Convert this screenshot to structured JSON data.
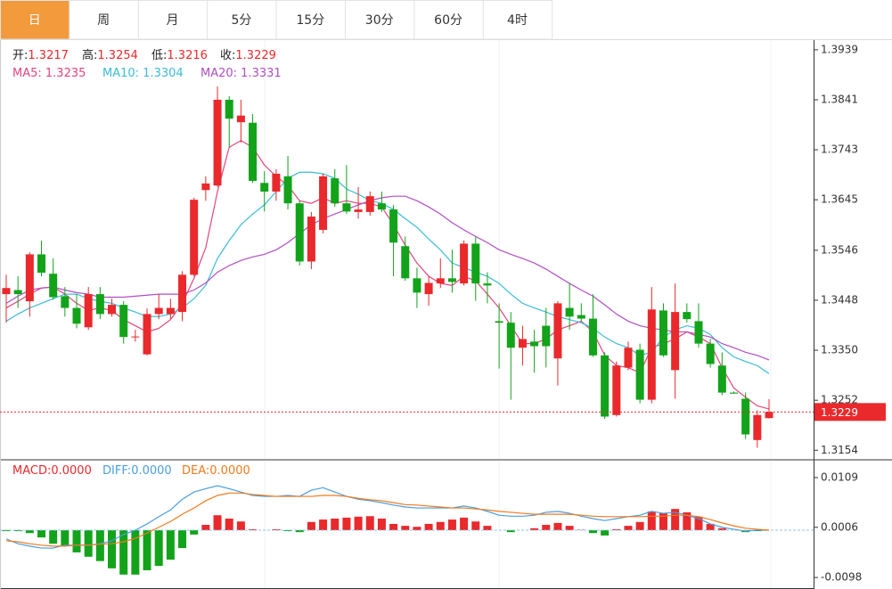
{
  "tabs": [
    "日",
    "周",
    "月",
    "5分",
    "15分",
    "30分",
    "60分",
    "4时"
  ],
  "active_tab": "日",
  "chart_data": [
    {
      "type": "candlestick",
      "ohlc_labels": [
        "开:",
        "高:",
        "低:",
        "收:"
      ],
      "separator": ": ",
      "up_color": "#e9292c",
      "down_color": "#12a31a",
      "current_line": true,
      "ylim": [
        1.3137,
        1.3958
      ],
      "yticks": [
        1.3939,
        1.3841,
        1.3743,
        1.3645,
        1.3546,
        1.3448,
        {
          "value": 1.335,
          "label": "1.3350"
        },
        1.3252,
        1.3154
      ],
      "open": [
        1.346,
        1.3468,
        1.3446,
        1.3538,
        1.35,
        1.3456,
        1.3433,
        1.3395,
        1.346,
        1.3421,
        1.3439,
        1.3376,
        1.3342,
        1.3421,
        1.3421,
        1.3425,
        1.3498,
        1.3664,
        1.3673,
        1.3841,
        1.3797,
        1.3796,
        1.3678,
        1.3661,
        1.3691,
        1.3638,
        1.3524,
        1.3586,
        1.3687,
        1.3638,
        1.3621,
        1.3621,
        1.3638,
        1.3626,
        1.3554,
        1.3491,
        1.346,
        1.3481,
        1.3491,
        1.3481,
        1.3559,
        1.3481,
        1.3407,
        1.3404,
        1.3355,
        1.3367,
        1.3398,
        1.3334,
        1.3433,
        1.3419,
        1.3412,
        1.334,
        1.3223,
        1.3316,
        1.3351,
        1.3253,
        1.3428,
        1.3311,
        1.3425,
        1.3407,
        1.3363,
        1.332,
        1.3267,
        1.3255,
        1.3174,
        1.3217
      ],
      "high": [
        1.3498,
        1.3495,
        1.3542,
        1.3565,
        1.353,
        1.3474,
        1.346,
        1.3474,
        1.3474,
        1.3451,
        1.3446,
        1.339,
        1.3432,
        1.346,
        1.3451,
        1.3505,
        1.3649,
        1.3691,
        1.3867,
        1.3848,
        1.3841,
        1.3813,
        1.3701,
        1.3705,
        1.3731,
        1.3643,
        1.3621,
        1.3696,
        1.3705,
        1.3713,
        1.367,
        1.3661,
        1.3661,
        1.3635,
        1.3573,
        1.3512,
        1.3495,
        1.353,
        1.3547,
        1.3565,
        1.3573,
        1.3503,
        1.3442,
        1.3425,
        1.3398,
        1.339,
        1.3433,
        1.3446,
        1.3482,
        1.3442,
        1.346,
        1.3346,
        1.3328,
        1.3367,
        1.3363,
        1.3474,
        1.3442,
        1.3481,
        1.3442,
        1.3442,
        1.3372,
        1.3346,
        1.3269,
        1.3267,
        1.3232,
        1.3254
      ],
      "low": [
        1.3404,
        1.3433,
        1.3416,
        1.3495,
        1.3449,
        1.3416,
        1.3393,
        1.339,
        1.3411,
        1.3416,
        1.3363,
        1.3367,
        1.334,
        1.3411,
        1.3411,
        1.3407,
        1.3495,
        1.3643,
        1.367,
        1.3748,
        1.3757,
        1.3678,
        1.3622,
        1.3643,
        1.3626,
        1.3516,
        1.3509,
        1.3579,
        1.3631,
        1.3617,
        1.3608,
        1.3614,
        1.3621,
        1.3495,
        1.3486,
        1.3433,
        1.3437,
        1.3472,
        1.3463,
        1.3477,
        1.3447,
        1.3442,
        1.3314,
        1.3253,
        1.332,
        1.3306,
        1.3316,
        1.3281,
        1.339,
        1.3407,
        1.3337,
        1.3215,
        1.322,
        1.3311,
        1.3246,
        1.3246,
        1.3337,
        1.3255,
        1.3404,
        1.3355,
        1.3316,
        1.3262,
        1.3265,
        1.3176,
        1.3159,
        1.3216
      ],
      "close": [
        1.3472,
        1.346,
        1.3538,
        1.3502,
        1.3454,
        1.3433,
        1.3402,
        1.346,
        1.3421,
        1.3439,
        1.3376,
        1.3377,
        1.3421,
        1.3433,
        1.3433,
        1.3498,
        1.3645,
        1.3677,
        1.3841,
        1.3804,
        1.381,
        1.3682,
        1.3661,
        1.3696,
        1.3638,
        1.3524,
        1.3612,
        1.3691,
        1.3638,
        1.3622,
        1.3626,
        1.3652,
        1.3626,
        1.3561,
        1.3491,
        1.3463,
        1.3482,
        1.3491,
        1.3484,
        1.3559,
        1.3481,
        1.3477,
        1.3404,
        1.3355,
        1.3372,
        1.3358,
        1.3358,
        1.3442,
        1.3416,
        1.3412,
        1.334,
        1.322,
        1.332,
        1.3355,
        1.3253,
        1.343,
        1.334,
        1.3425,
        1.3411,
        1.3363,
        1.3323,
        1.3267,
        1.3265,
        1.3185,
        1.3223,
        1.3229
      ],
      "series": [
        {
          "name": "MA5",
          "color": "#e2457f",
          "values": [
            1.3433,
            1.3446,
            1.346,
            1.3472,
            1.3474,
            1.346,
            1.3442,
            1.3428,
            1.3433,
            1.3428,
            1.341,
            1.3398,
            1.3386,
            1.3393,
            1.341,
            1.3442,
            1.3491,
            1.3551,
            1.3661,
            1.3748,
            1.3761,
            1.3748,
            1.3713,
            1.3691,
            1.3673,
            1.3643,
            1.3638,
            1.3649,
            1.3638,
            1.3643,
            1.3638,
            1.3638,
            1.3631,
            1.3596,
            1.3556,
            1.3521,
            1.3495,
            1.3481,
            1.3477,
            1.3495,
            1.3486,
            1.346,
            1.3433,
            1.3398,
            1.3363,
            1.3363,
            1.3372,
            1.339,
            1.3398,
            1.3407,
            1.3386,
            1.334,
            1.332,
            1.3316,
            1.3306,
            1.3355,
            1.3363,
            1.3372,
            1.3386,
            1.3376,
            1.3363,
            1.3316,
            1.3276,
            1.3258,
            1.3241,
            1.3235
          ]
        },
        {
          "name": "MA10",
          "color": "#3bbcd6",
          "values": [
            1.3407,
            1.3421,
            1.3433,
            1.3442,
            1.3451,
            1.346,
            1.346,
            1.3451,
            1.3446,
            1.3442,
            1.3433,
            1.3425,
            1.3416,
            1.3416,
            1.3421,
            1.3433,
            1.3451,
            1.3477,
            1.353,
            1.3565,
            1.3596,
            1.3617,
            1.3635,
            1.3661,
            1.3687,
            1.3699,
            1.3699,
            1.3696,
            1.3687,
            1.3666,
            1.3656,
            1.3643,
            1.3638,
            1.3626,
            1.3608,
            1.3591,
            1.3568,
            1.3547,
            1.3521,
            1.3512,
            1.3503,
            1.3495,
            1.3481,
            1.346,
            1.3442,
            1.3433,
            1.3425,
            1.3416,
            1.341,
            1.3404,
            1.3393,
            1.3376,
            1.3363,
            1.3355,
            1.334,
            1.3346,
            1.3376,
            1.339,
            1.3398,
            1.3393,
            1.3381,
            1.3355,
            1.3337,
            1.3328,
            1.332,
            1.3304
          ]
        },
        {
          "name": "MA20",
          "color": "#b04fc2",
          "values": [
            1.3442,
            1.3456,
            1.3468,
            1.3472,
            1.3474,
            1.3468,
            1.3463,
            1.346,
            1.3454,
            1.3454,
            1.3454,
            1.3456,
            1.3458,
            1.346,
            1.346,
            1.346,
            1.3468,
            1.3482,
            1.3503,
            1.3516,
            1.3526,
            1.3533,
            1.3538,
            1.3547,
            1.3561,
            1.3579,
            1.3596,
            1.3608,
            1.3617,
            1.3626,
            1.3635,
            1.3643,
            1.3649,
            1.3652,
            1.3652,
            1.3643,
            1.3631,
            1.3617,
            1.36,
            1.3586,
            1.3573,
            1.3561,
            1.3547,
            1.3538,
            1.353,
            1.3521,
            1.3509,
            1.3495,
            1.3481,
            1.3468,
            1.3456,
            1.3439,
            1.3421,
            1.3407,
            1.3398,
            1.3393,
            1.339,
            1.3386,
            1.3386,
            1.3381,
            1.3376,
            1.3363,
            1.3355,
            1.3346,
            1.334,
            1.3331
          ]
        }
      ]
    },
    {
      "type": "macd",
      "separator": ":",
      "up_color": "#e9292c",
      "down_color": "#12a31a",
      "zero_line": true,
      "ylim": [
        -0.012,
        0.0144
      ],
      "yticks": [
        0.0109,
        0.0006,
        -0.0098
      ],
      "histogram": {
        "name": "MACD",
        "color": "#e9292c",
        "values": [
          -0.0002,
          -0.0002,
          -0.0006,
          -0.0015,
          -0.0028,
          -0.0033,
          -0.0046,
          -0.0055,
          -0.0064,
          -0.0079,
          -0.0092,
          -0.0092,
          -0.0083,
          -0.0074,
          -0.0061,
          -0.0037,
          -0.0009,
          0.0011,
          0.0031,
          0.0024,
          0.0018,
          0.0002,
          0,
          0.0002,
          -0.0002,
          -0.0004,
          0.0017,
          0.0022,
          0.0024,
          0.0026,
          0.0028,
          0.0029,
          0.0024,
          0.0013,
          0.0009,
          0.0007,
          0.0013,
          0.0017,
          0.0022,
          0.0026,
          0.0018,
          0.0009,
          0,
          -0.0004,
          0,
          0.0004,
          0.0011,
          0.0015,
          0.0009,
          0.0001,
          -0.0006,
          -0.0011,
          0.0002,
          0.0009,
          0.0017,
          0.0039,
          0.0035,
          0.0044,
          0.0037,
          0.0028,
          0.0013,
          0.0004,
          0,
          -0.0004,
          -0.0002,
          0
        ],
        "value_labels": [
          null,
          null,
          null,
          null,
          null,
          null,
          null,
          null,
          null,
          null,
          null,
          null,
          null,
          null,
          null,
          null,
          null,
          null,
          null,
          null,
          null,
          null,
          null,
          null,
          null,
          null,
          null,
          null,
          null,
          null,
          null,
          null,
          null,
          null,
          null,
          null,
          null,
          null,
          null,
          null,
          null,
          null,
          null,
          null,
          null,
          null,
          null,
          null,
          null,
          null,
          null,
          null,
          null,
          null,
          null,
          null,
          null,
          null,
          null,
          null,
          null,
          null,
          null,
          null,
          null,
          "0.0000"
        ]
      },
      "series": [
        {
          "name": "DIFF",
          "color": "#4a9ee0",
          "values": [
            -0.0018,
            -0.0028,
            -0.0033,
            -0.0037,
            -0.0037,
            -0.0031,
            -0.0031,
            -0.0031,
            -0.0028,
            -0.0022,
            -0.0009,
            0,
            0.0013,
            0.0028,
            0.0042,
            0.0064,
            0.0079,
            0.0086,
            0.0092,
            0.0086,
            0.0079,
            0.0072,
            0.007,
            0.007,
            0.0072,
            0.007,
            0.0083,
            0.0088,
            0.0079,
            0.007,
            0.0064,
            0.0061,
            0.0057,
            0.0052,
            0.0048,
            0.0046,
            0.0046,
            0.0046,
            0.0046,
            0.005,
            0.0046,
            0.0039,
            0.0031,
            0.0029,
            0.0029,
            0.0031,
            0.0037,
            0.0039,
            0.0035,
            0.0029,
            0.0024,
            0.002,
            0.0024,
            0.0028,
            0.0031,
            0.0039,
            0.0035,
            0.0037,
            0.0031,
            0.0024,
            0.0013,
            0.0006,
            0.0002,
            -0.0002,
            0,
            0
          ],
          "value_labels": [
            null,
            null,
            null,
            null,
            null,
            null,
            null,
            null,
            null,
            null,
            null,
            null,
            null,
            null,
            null,
            null,
            null,
            null,
            null,
            null,
            null,
            null,
            null,
            null,
            null,
            null,
            null,
            null,
            null,
            null,
            null,
            null,
            null,
            null,
            null,
            null,
            null,
            null,
            null,
            null,
            null,
            null,
            null,
            null,
            null,
            null,
            null,
            null,
            null,
            null,
            null,
            null,
            null,
            null,
            null,
            null,
            null,
            null,
            null,
            null,
            null,
            null,
            null,
            null,
            null,
            "0.0000"
          ]
        },
        {
          "name": "DEA",
          "color": "#f07a1e",
          "values": [
            -0.0022,
            -0.0024,
            -0.0028,
            -0.0031,
            -0.0033,
            -0.0033,
            -0.0031,
            -0.0031,
            -0.0029,
            -0.0028,
            -0.0024,
            -0.0017,
            -0.0006,
            0.0006,
            0.0018,
            0.0033,
            0.0046,
            0.0061,
            0.0072,
            0.0077,
            0.0077,
            0.0074,
            0.0072,
            0.007,
            0.007,
            0.007,
            0.007,
            0.0072,
            0.0072,
            0.007,
            0.0066,
            0.0063,
            0.0061,
            0.0057,
            0.0053,
            0.0052,
            0.005,
            0.0048,
            0.0046,
            0.0046,
            0.0044,
            0.0042,
            0.0039,
            0.0037,
            0.0035,
            0.0033,
            0.0033,
            0.0033,
            0.0033,
            0.0031,
            0.0029,
            0.0028,
            0.0028,
            0.0028,
            0.0028,
            0.0029,
            0.0029,
            0.0031,
            0.0031,
            0.0028,
            0.0022,
            0.0015,
            0.0009,
            0.0004,
            0.0002,
            0
          ],
          "value_labels": [
            null,
            null,
            null,
            null,
            null,
            null,
            null,
            null,
            null,
            null,
            null,
            null,
            null,
            null,
            null,
            null,
            null,
            null,
            null,
            null,
            null,
            null,
            null,
            null,
            null,
            null,
            null,
            null,
            null,
            null,
            null,
            null,
            null,
            null,
            null,
            null,
            null,
            null,
            null,
            null,
            null,
            null,
            null,
            null,
            null,
            null,
            null,
            null,
            null,
            null,
            null,
            null,
            null,
            null,
            null,
            null,
            null,
            null,
            null,
            null,
            null,
            null,
            null,
            null,
            null,
            "0.0000"
          ]
        }
      ]
    }
  ]
}
